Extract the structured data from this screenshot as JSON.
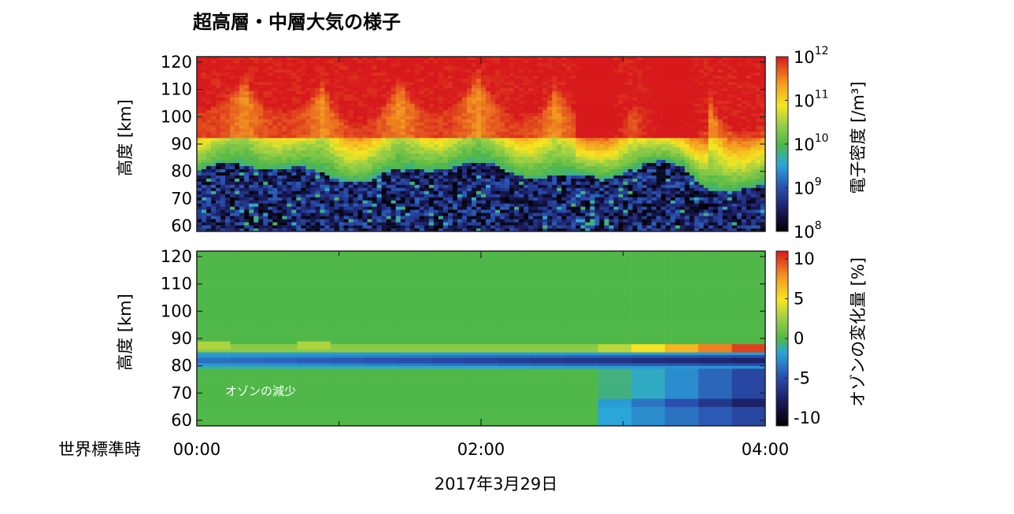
{
  "chart_data": [
    {
      "type": "heatmap",
      "title": "超高層・中層大気の様子",
      "ylabel": "高度 [km]",
      "ylim": [
        58,
        122
      ],
      "yticks": [
        "60",
        "70",
        "80",
        "90",
        "100",
        "110",
        "120"
      ],
      "xlim": [
        "00:00",
        "04:00"
      ],
      "colorbar": {
        "label": "電子密度  [/m³]",
        "scale": "log",
        "range": [
          100000000.0,
          1000000000000.0
        ],
        "ticks": [
          {
            "base": "10",
            "exp": "8"
          },
          {
            "base": "10",
            "exp": "9"
          },
          {
            "base": "10",
            "exp": "10"
          },
          {
            "base": "10",
            "exp": "11"
          },
          {
            "base": "10",
            "exp": "12"
          }
        ]
      },
      "description_values": {
        "quiet_region_top_km": 80,
        "bright_layer_km": [
          85,
          120
        ],
        "peak_density": 1000000000000.0
      }
    },
    {
      "type": "heatmap",
      "ylabel": "高度 [km]",
      "ylim": [
        58,
        122
      ],
      "yticks": [
        "60",
        "70",
        "80",
        "90",
        "100",
        "110",
        "120"
      ],
      "xlim": [
        "00:00",
        "04:00"
      ],
      "annotation": "オゾンの減少",
      "colorbar": {
        "label": "オゾンの変化量 [%]",
        "scale": "linear",
        "range": [
          -11,
          11
        ],
        "ticks": [
          "-10",
          "-5",
          "0",
          "5",
          "10"
        ]
      },
      "depletion_layer_km": [
        79,
        85
      ]
    }
  ],
  "xaxis": {
    "label": "世界標準時",
    "ticks": [
      "00:00",
      "02:00",
      "04:00"
    ],
    "date": "2017年3月29日"
  }
}
